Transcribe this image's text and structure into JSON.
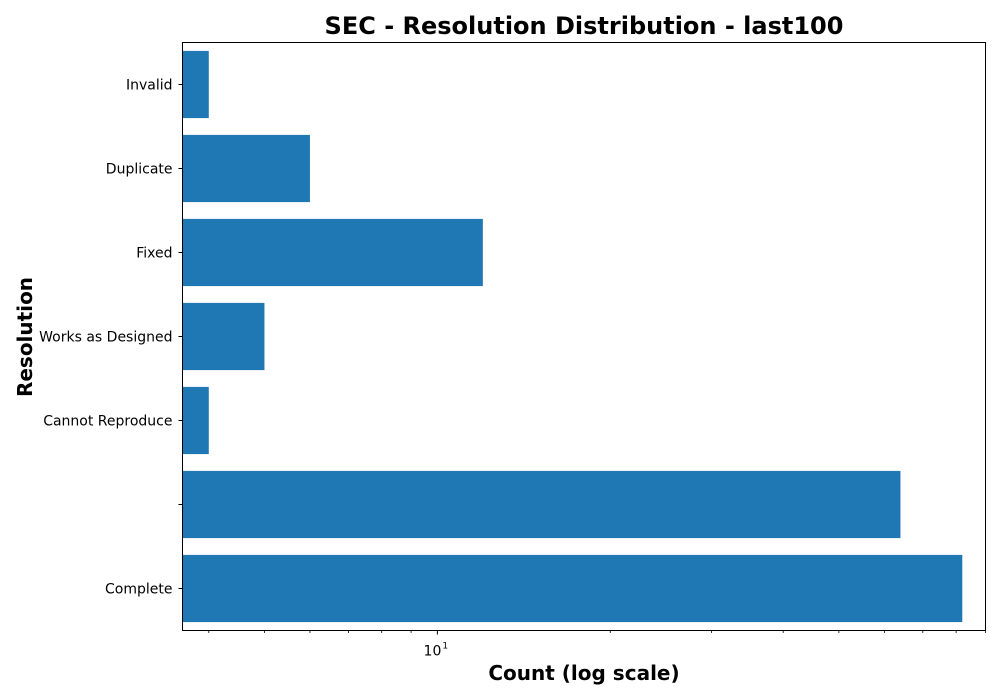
{
  "chart_data": {
    "type": "bar",
    "orientation": "horizontal",
    "title": "SEC - Resolution Distribution - last100",
    "xlabel": "Count (log scale)",
    "ylabel": "Resolution",
    "x_scale": "log",
    "xlim": [
      3.6,
      90
    ],
    "x_major_ticks": [
      {
        "value": 10,
        "base": "10",
        "exponent": "1"
      }
    ],
    "x_minor_ticks": [
      4,
      5,
      6,
      7,
      8,
      9,
      20,
      30,
      40,
      50,
      60,
      70,
      80,
      90
    ],
    "categories": [
      "Invalid",
      "Duplicate",
      "Fixed",
      "Works as Designed",
      "Cannot Reproduce",
      "",
      "Complete"
    ],
    "values": [
      4,
      6,
      12,
      5,
      4,
      64,
      82
    ],
    "bar_color": "#1f77b4",
    "grid": false,
    "legend": "none"
  }
}
